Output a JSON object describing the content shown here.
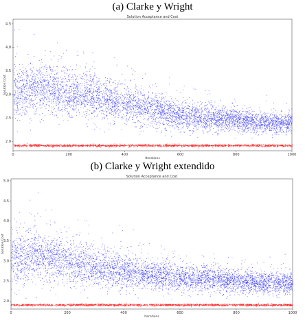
{
  "captions": {
    "a": "(a)   Clarke y Wright",
    "b": "(b)   Clarke y Wright extendido"
  },
  "colors": {
    "accepted": "#2a2aff",
    "cost": "#ff1a1a",
    "axis": "#555555"
  },
  "chart_data": [
    {
      "type": "scatter",
      "title": "Solution Acceptance and Cost",
      "xlabel": "Iterations",
      "ylabel": "Solution Cost",
      "xlim": [
        0,
        1000
      ],
      "ylim": [
        1.8,
        4.6
      ],
      "xticks": [
        "0",
        "200",
        "400",
        "600",
        "800",
        "1000"
      ],
      "yticks": [
        "2.0",
        "2.5",
        "3.0",
        "3.5",
        "4.0",
        "4.5"
      ],
      "series": [
        {
          "role": "accepted",
          "approx_count": 5000,
          "trend_x": [
            0,
            100,
            200,
            300,
            400,
            500,
            600,
            700,
            800,
            900,
            1000
          ],
          "trend_mean": [
            3.0,
            3.15,
            3.05,
            2.95,
            2.8,
            2.7,
            2.55,
            2.5,
            2.45,
            2.4,
            2.4
          ],
          "trend_spread": [
            0.5,
            0.5,
            0.45,
            0.42,
            0.38,
            0.33,
            0.28,
            0.26,
            0.22,
            0.2,
            0.18
          ]
        },
        {
          "role": "cost",
          "x": [
            0,
            1000
          ],
          "y": [
            1.91,
            1.91
          ]
        }
      ]
    },
    {
      "type": "scatter",
      "title": "Solution Acceptance and Cost",
      "xlabel": "Iterations",
      "ylabel": "Solution Cost",
      "xlim": [
        0,
        1000
      ],
      "ylim": [
        1.8,
        5.05
      ],
      "xticks": [
        "0",
        "200",
        "400",
        "600",
        "800",
        "1000"
      ],
      "yticks": [
        "2.0",
        "2.5",
        "3.0",
        "3.5",
        "4.0",
        "4.5",
        "5.0"
      ],
      "series": [
        {
          "role": "accepted",
          "approx_count": 5000,
          "trend_x": [
            0,
            100,
            200,
            300,
            400,
            500,
            600,
            700,
            800,
            900,
            1000
          ],
          "trend_mean": [
            3.05,
            3.15,
            3.0,
            2.85,
            2.75,
            2.65,
            2.6,
            2.55,
            2.5,
            2.45,
            2.45
          ],
          "trend_spread": [
            0.6,
            0.6,
            0.5,
            0.45,
            0.4,
            0.35,
            0.32,
            0.3,
            0.28,
            0.25,
            0.22
          ]
        },
        {
          "role": "cost",
          "x": [
            0,
            1000
          ],
          "y": [
            1.9,
            1.9
          ]
        }
      ]
    }
  ]
}
